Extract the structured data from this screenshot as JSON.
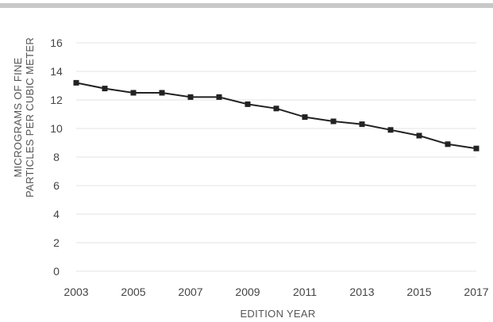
{
  "chart_data": {
    "type": "line",
    "title": "",
    "xlabel": "EDITION YEAR",
    "ylabel": [
      "MICROGRAMS OF FINE",
      "PARTICLES PER CUBIC METER"
    ],
    "x": [
      2003,
      2004,
      2005,
      2006,
      2007,
      2008,
      2009,
      2010,
      2011,
      2012,
      2013,
      2014,
      2015,
      2016,
      2017
    ],
    "series": [
      {
        "values": [
          13.2,
          12.8,
          12.5,
          12.5,
          12.2,
          12.2,
          11.7,
          11.4,
          10.8,
          10.5,
          10.3,
          9.9,
          9.5,
          8.9,
          8.6
        ]
      }
    ],
    "xticks": [
      "2003",
      "2005",
      "2007",
      "2009",
      "2011",
      "2013",
      "2015",
      "2017"
    ],
    "yticks": [
      "0",
      "2",
      "4",
      "6",
      "8",
      "10",
      "12",
      "14",
      "16"
    ],
    "ylim": [
      0,
      16
    ],
    "grid": true,
    "legend": "none",
    "colors": {
      "line": "#222222",
      "grid": "#e3e3e3",
      "top_bar": "#c8c8c8"
    }
  }
}
